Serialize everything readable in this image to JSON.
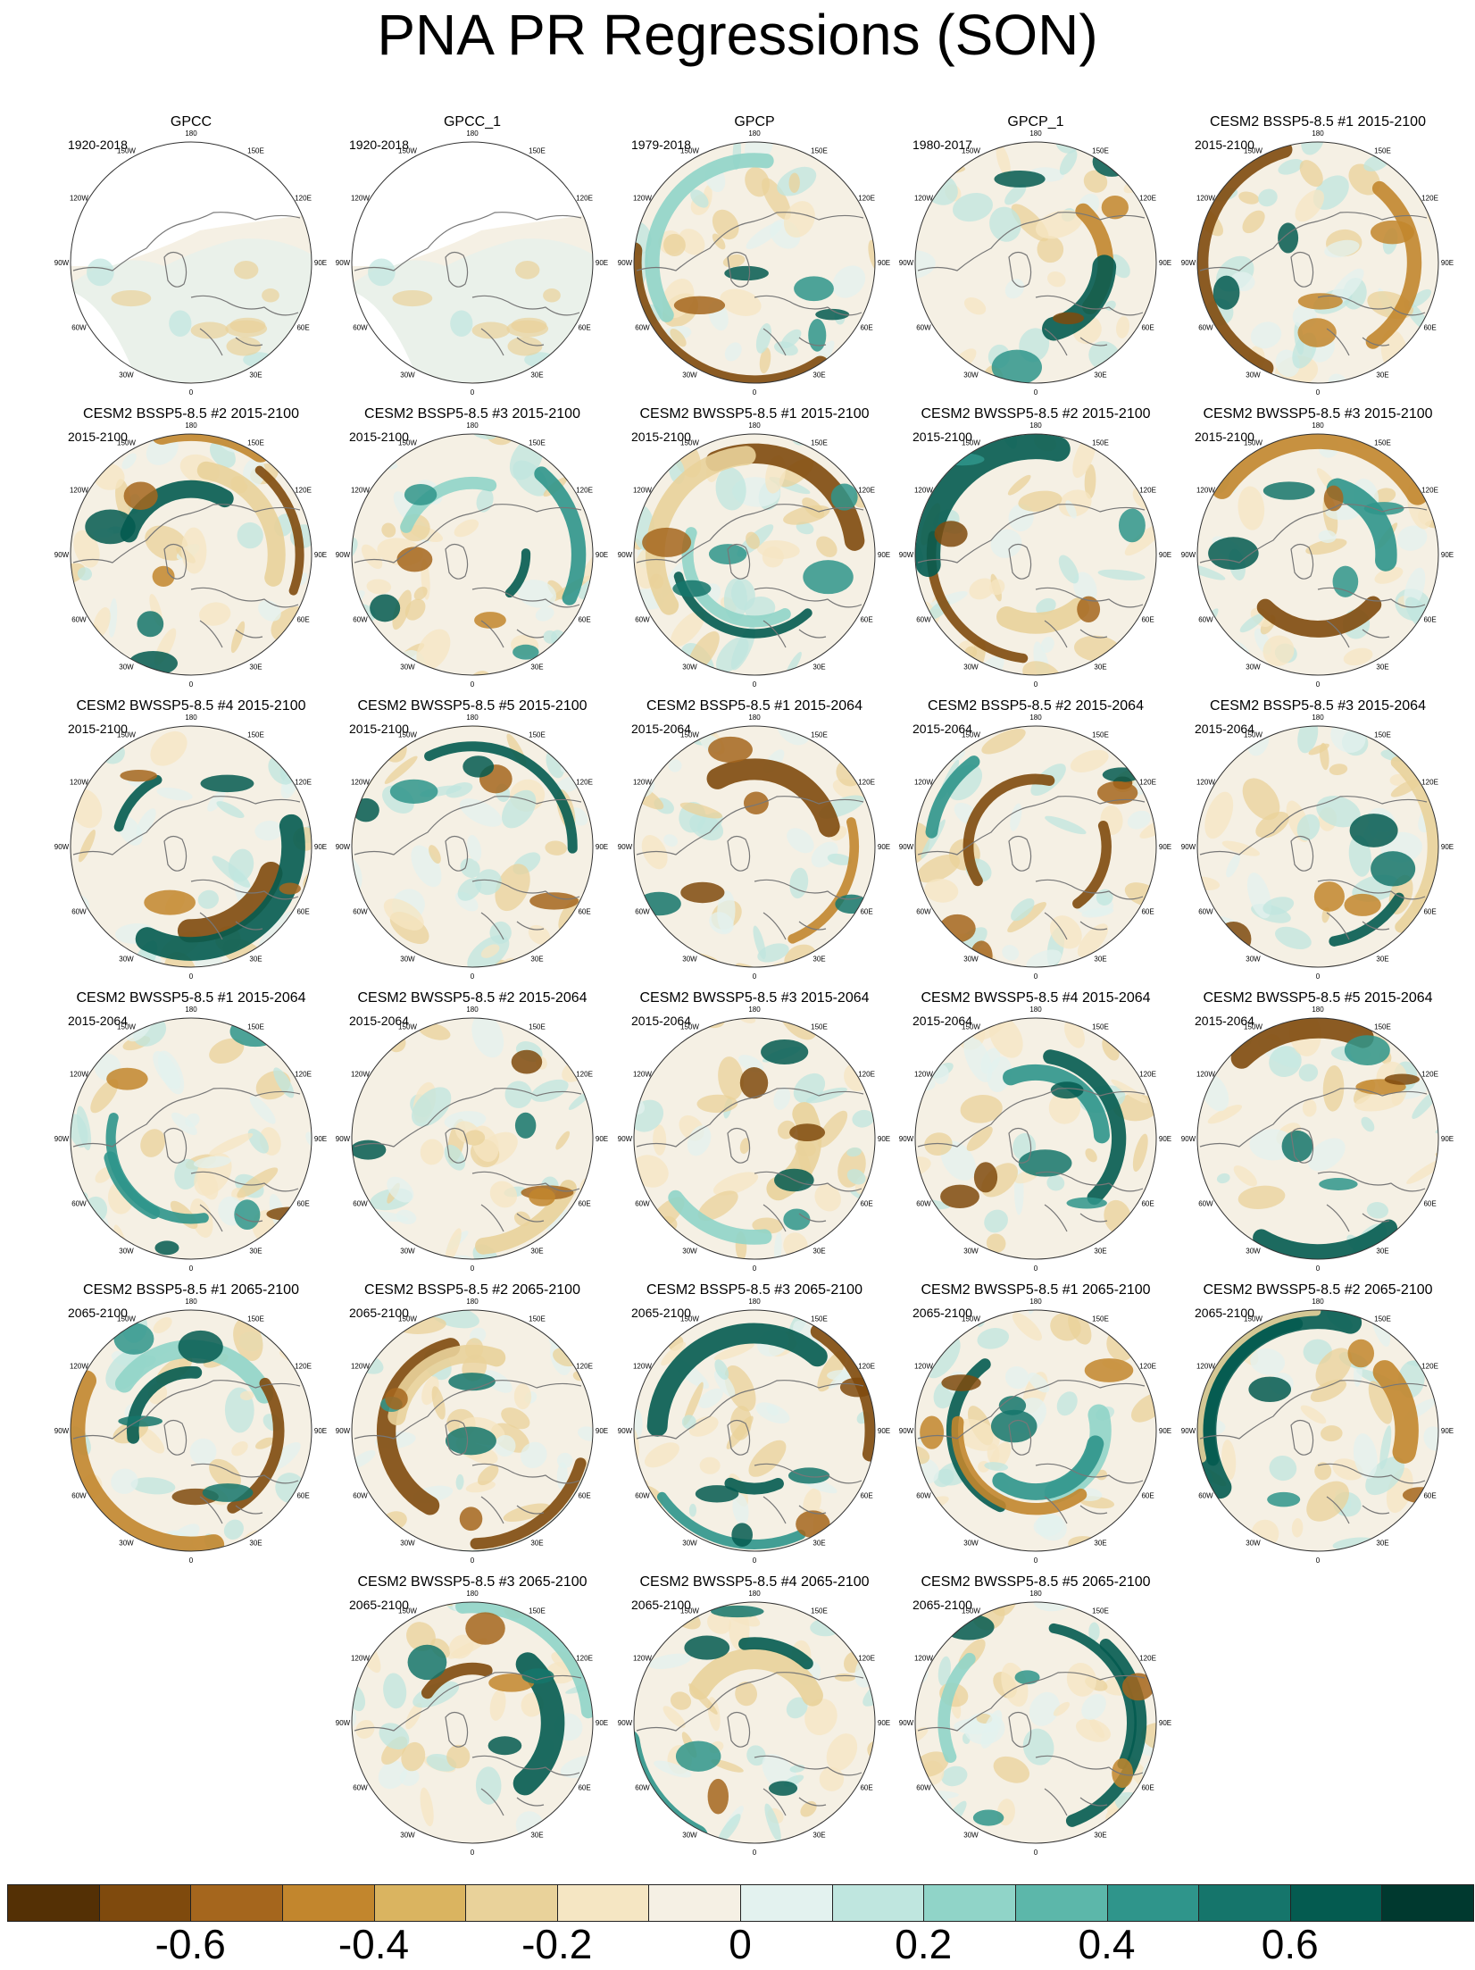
{
  "title": "PNA PR Regressions (SON)",
  "map_labels": {
    "top": "180",
    "bottom": "0",
    "left": "90W",
    "right": "90E",
    "upper_left_1": "150W",
    "upper_left_2": "120W",
    "lower_left_1": "60W",
    "lower_left_2": "30W",
    "upper_right_1": "150E",
    "upper_right_2": "120E",
    "lower_right_1": "60E",
    "lower_right_2": "30E"
  },
  "colors": {
    "land_outline": "#777777",
    "no_data": "#ffffff",
    "border": "#333333"
  },
  "panels": [
    {
      "title": "GPCC",
      "period": "1920-2018",
      "pattern": 0,
      "missing": true
    },
    {
      "title": "GPCC_1",
      "period": "1920-2018",
      "pattern": 0,
      "missing": true
    },
    {
      "title": "GPCP",
      "period": "1979-2018",
      "pattern": 1
    },
    {
      "title": "GPCP_1",
      "period": "1980-2017",
      "pattern": 2
    },
    {
      "title": "CESM2 BSSP5-8.5 #1 2015-2100",
      "period": "2015-2100",
      "pattern": 3
    },
    {
      "title": "CESM2 BSSP5-8.5 #2 2015-2100",
      "period": "2015-2100",
      "pattern": 4
    },
    {
      "title": "CESM2 BSSP5-8.5 #3 2015-2100",
      "period": "2015-2100",
      "pattern": 5
    },
    {
      "title": "CESM2 BWSSP5-8.5 #1 2015-2100",
      "period": "2015-2100",
      "pattern": 6
    },
    {
      "title": "CESM2 BWSSP5-8.5 #2 2015-2100",
      "period": "2015-2100",
      "pattern": 7
    },
    {
      "title": "CESM2 BWSSP5-8.5 #3 2015-2100",
      "period": "2015-2100",
      "pattern": 8
    },
    {
      "title": "CESM2 BWSSP5-8.5 #4 2015-2100",
      "period": "2015-2100",
      "pattern": 9
    },
    {
      "title": "CESM2 BWSSP5-8.5 #5 2015-2100",
      "period": "2015-2100",
      "pattern": 10
    },
    {
      "title": "CESM2 BSSP5-8.5 #1 2015-2064",
      "period": "2015-2064",
      "pattern": 11
    },
    {
      "title": "CESM2 BSSP5-8.5 #2 2015-2064",
      "period": "2015-2064",
      "pattern": 12
    },
    {
      "title": "CESM2 BSSP5-8.5 #3 2015-2064",
      "period": "2015-2064",
      "pattern": 13
    },
    {
      "title": "CESM2 BWSSP5-8.5 #1 2015-2064",
      "period": "2015-2064",
      "pattern": 14
    },
    {
      "title": "CESM2 BWSSP5-8.5 #2 2015-2064",
      "period": "2015-2064",
      "pattern": 15
    },
    {
      "title": "CESM2 BWSSP5-8.5 #3 2015-2064",
      "period": "2015-2064",
      "pattern": 16
    },
    {
      "title": "CESM2 BWSSP5-8.5 #4 2015-2064",
      "period": "2015-2064",
      "pattern": 17
    },
    {
      "title": "CESM2 BWSSP5-8.5 #5 2015-2064",
      "period": "2015-2064",
      "pattern": 18
    },
    {
      "title": "CESM2 BSSP5-8.5 #1 2065-2100",
      "period": "2065-2100",
      "pattern": 19
    },
    {
      "title": "CESM2 BSSP5-8.5 #2 2065-2100",
      "period": "2065-2100",
      "pattern": 20
    },
    {
      "title": "CESM2 BSSP5-8.5 #3 2065-2100",
      "period": "2065-2100",
      "pattern": 21
    },
    {
      "title": "CESM2 BWSSP5-8.5 #1 2065-2100",
      "period": "2065-2100",
      "pattern": 22
    },
    {
      "title": "CESM2 BWSSP5-8.5 #2 2065-2100",
      "period": "2065-2100",
      "pattern": 23
    },
    {
      "title": "CESM2 BWSSP5-8.5 #3 2065-2100",
      "period": "2065-2100",
      "pattern": 24
    },
    {
      "title": "CESM2 BWSSP5-8.5 #4 2065-2100",
      "period": "2065-2100",
      "pattern": 25
    },
    {
      "title": "CESM2 BWSSP5-8.5 #5 2065-2100",
      "period": "2065-2100",
      "pattern": 26
    }
  ],
  "legend": {
    "colors": [
      "#543005",
      "#7f4a0d",
      "#a5661d",
      "#c2862d",
      "#dab460",
      "#e9d29a",
      "#f5e6c3",
      "#f5f0e4",
      "#e3f2ef",
      "#bfe6df",
      "#90d4c8",
      "#5cb7aa",
      "#2f958b",
      "#15756b",
      "#045b50",
      "#00392f"
    ],
    "tick_labels": [
      "-0.6",
      "-0.4",
      "-0.2",
      "0",
      "0.2",
      "0.4",
      "0.6"
    ],
    "tick_values": [
      -0.6,
      -0.4,
      -0.2,
      0,
      0.2,
      0.4,
      0.6
    ]
  }
}
